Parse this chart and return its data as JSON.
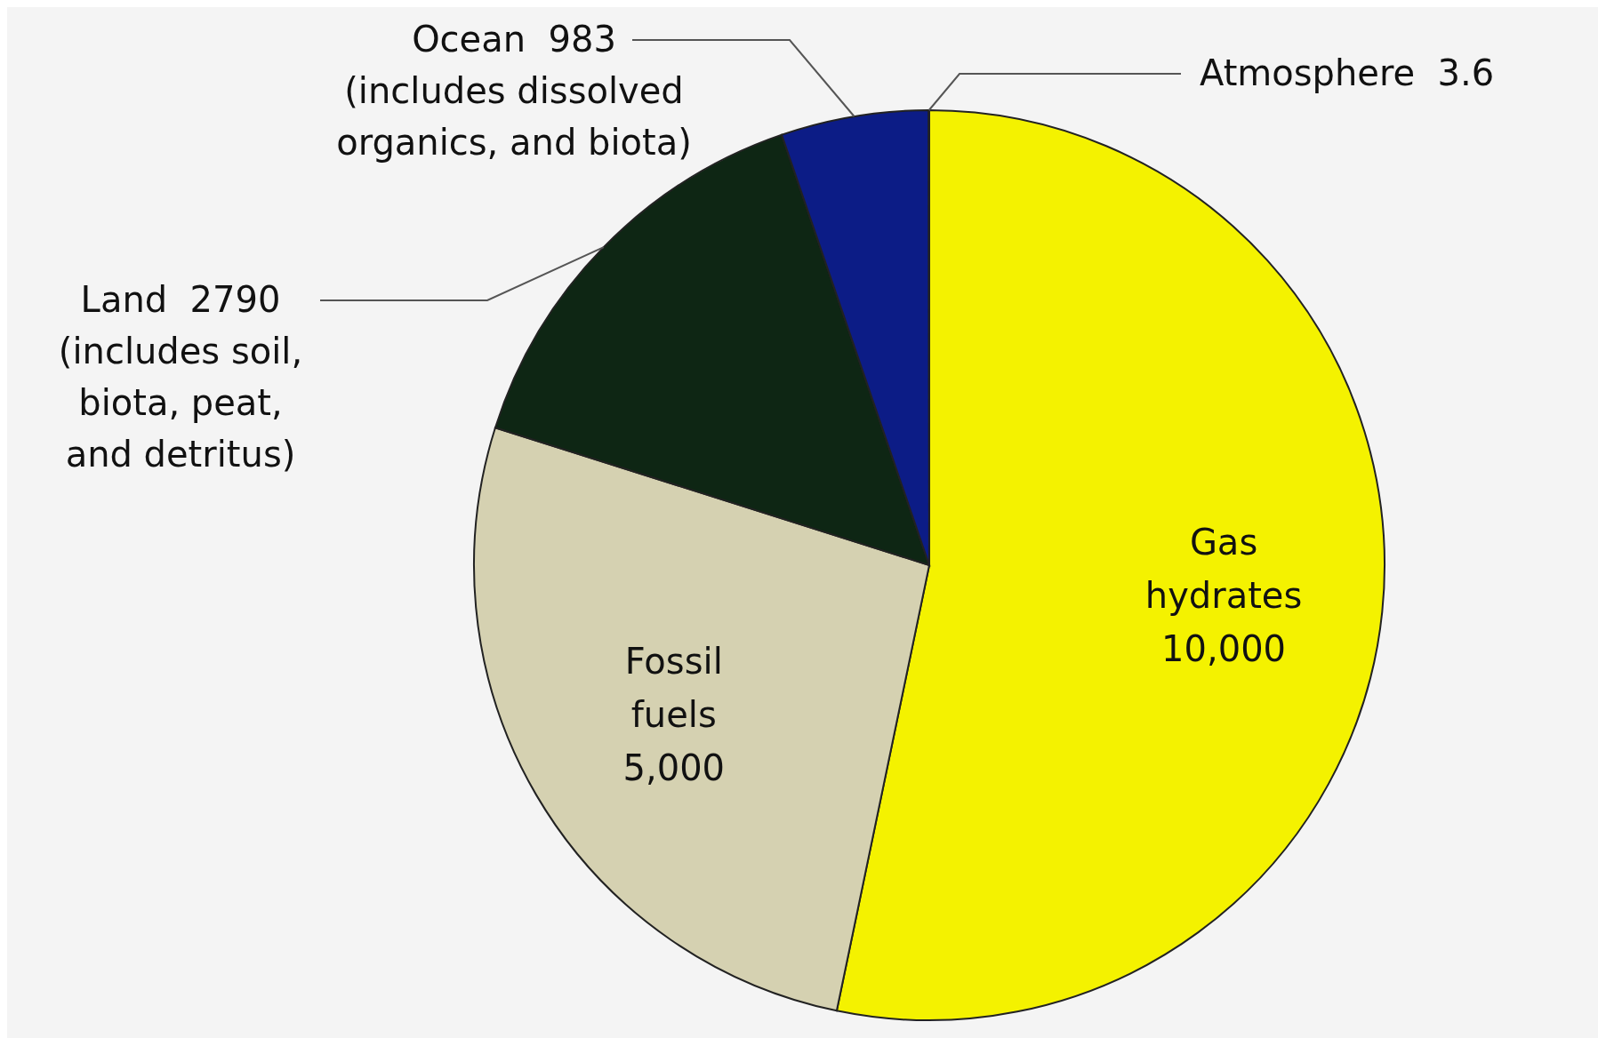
{
  "chart_data": {
    "type": "pie",
    "categories": [
      "Gas hydrates",
      "Fossil fuels",
      "Land",
      "Ocean",
      "Atmosphere"
    ],
    "values": [
      10000,
      5000,
      2790,
      983,
      3.6
    ],
    "value_labels": [
      "10,000",
      "5,000",
      "2790",
      "983",
      "3.6"
    ],
    "colors": [
      "#f4f200",
      "#d5d1b1",
      "#0e2614",
      "#0c1c86",
      "#8fb0c8"
    ],
    "annotations": [
      "(includes dissolved organics, and biota)",
      "(includes soil, biota, peat, and detritus)"
    ]
  }
}
